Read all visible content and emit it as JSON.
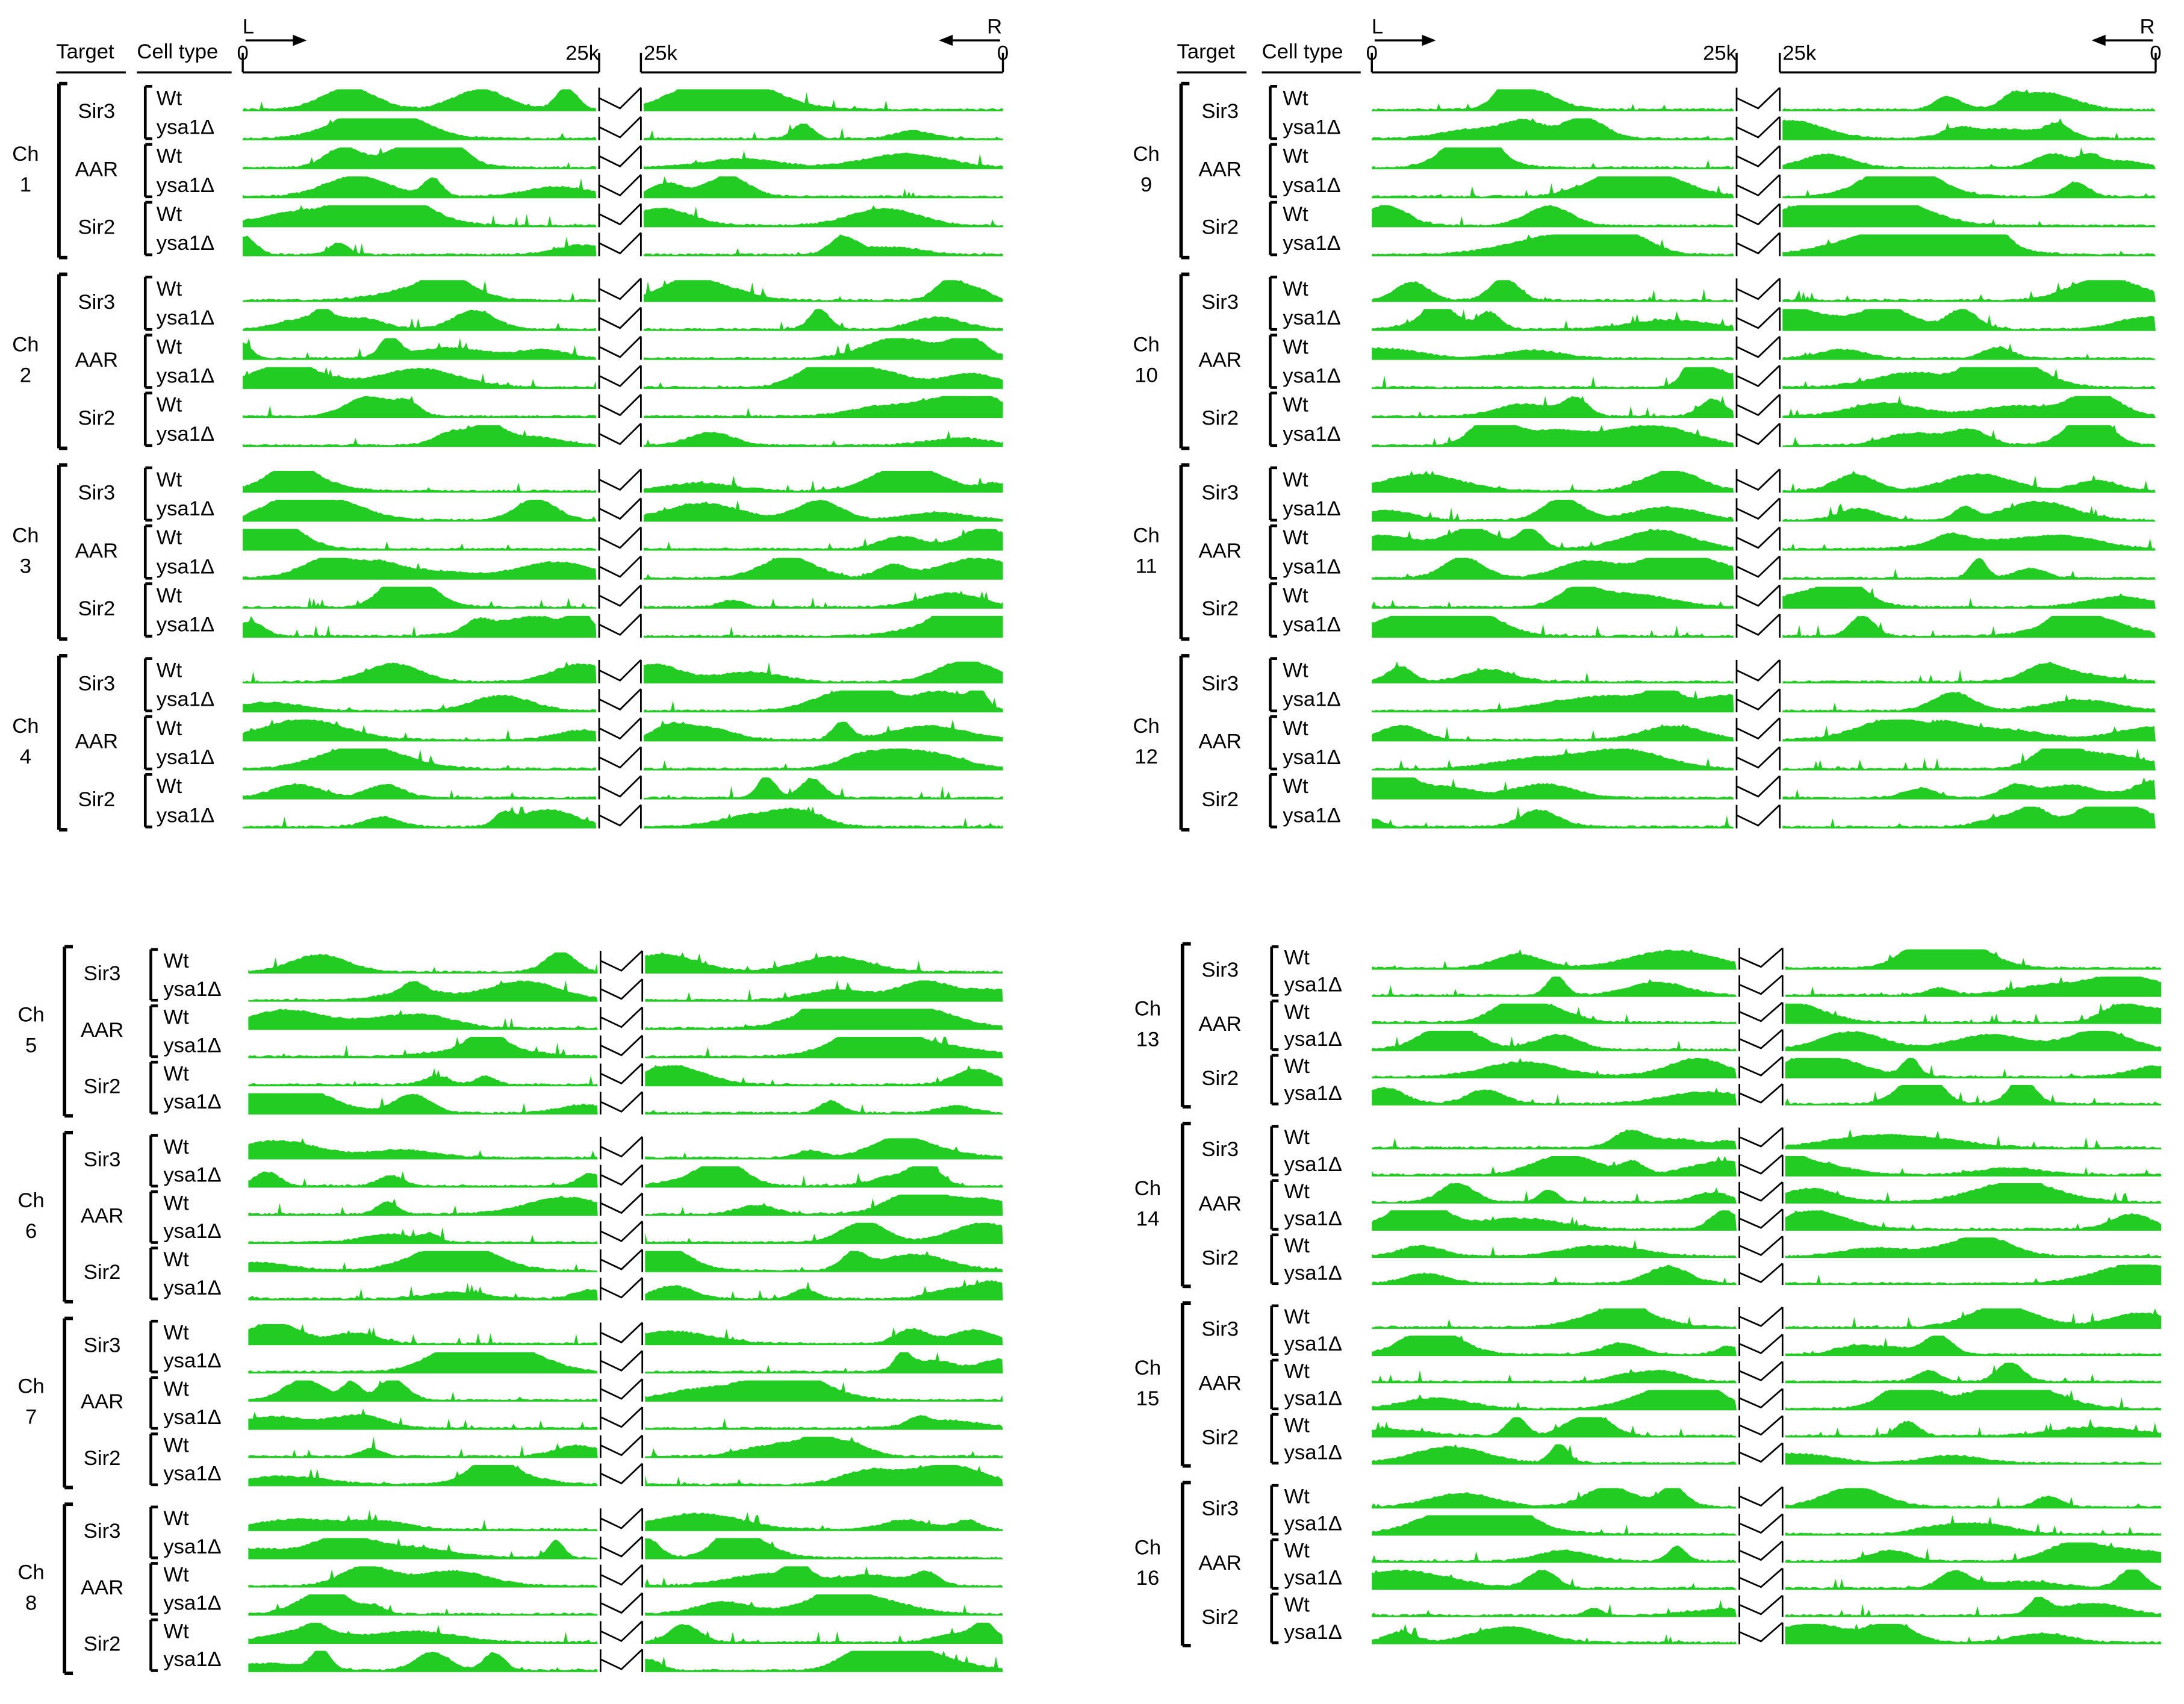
{
  "panels": [
    {
      "header": {
        "target": "Target",
        "cell_type": "Cell type",
        "left": "L",
        "right": "R",
        "ticks": [
          "0",
          "25k",
          "25k",
          "0"
        ]
      },
      "chromosomes": [
        {
          "label": "Ch",
          "number": "1",
          "targets": [
            {
              "name": "Sir3",
              "cells": [
                "Wt",
                "ysa1Δ"
              ]
            },
            {
              "name": "AAR",
              "cells": [
                "Wt",
                "ysa1Δ"
              ]
            },
            {
              "name": "Sir2",
              "cells": [
                "Wt",
                "ysa1Δ"
              ]
            }
          ]
        },
        {
          "label": "Ch",
          "number": "2",
          "targets": [
            {
              "name": "Sir3",
              "cells": [
                "Wt",
                "ysa1Δ"
              ]
            },
            {
              "name": "AAR",
              "cells": [
                "Wt",
                "ysa1Δ"
              ]
            },
            {
              "name": "Sir2",
              "cells": [
                "Wt",
                "ysa1Δ"
              ]
            }
          ]
        },
        {
          "label": "Ch",
          "number": "3",
          "targets": [
            {
              "name": "Sir3",
              "cells": [
                "Wt",
                "ysa1Δ"
              ]
            },
            {
              "name": "AAR",
              "cells": [
                "Wt",
                "ysa1Δ"
              ]
            },
            {
              "name": "Sir2",
              "cells": [
                "Wt",
                "ysa1Δ"
              ]
            }
          ]
        },
        {
          "label": "Ch",
          "number": "4",
          "targets": [
            {
              "name": "Sir3",
              "cells": [
                "Wt",
                "ysa1Δ"
              ]
            },
            {
              "name": "AAR",
              "cells": [
                "Wt",
                "ysa1Δ"
              ]
            },
            {
              "name": "Sir2",
              "cells": [
                "Wt",
                "ysa1Δ"
              ]
            }
          ]
        }
      ]
    },
    {
      "header": {
        "target": "Target",
        "cell_type": "Cell type",
        "left": "L",
        "right": "R",
        "ticks": [
          "0",
          "25k",
          "25k",
          "0"
        ]
      },
      "chromosomes": [
        {
          "label": "Ch",
          "number": "9",
          "targets": [
            {
              "name": "Sir3",
              "cells": [
                "Wt",
                "ysa1Δ"
              ]
            },
            {
              "name": "AAR",
              "cells": [
                "Wt",
                "ysa1Δ"
              ]
            },
            {
              "name": "Sir2",
              "cells": [
                "Wt",
                "ysa1Δ"
              ]
            }
          ]
        },
        {
          "label": "Ch",
          "number": "10",
          "targets": [
            {
              "name": "Sir3",
              "cells": [
                "Wt",
                "ysa1Δ"
              ]
            },
            {
              "name": "AAR",
              "cells": [
                "Wt",
                "ysa1Δ"
              ]
            },
            {
              "name": "Sir2",
              "cells": [
                "Wt",
                "ysa1Δ"
              ]
            }
          ]
        },
        {
          "label": "Ch",
          "number": "11",
          "targets": [
            {
              "name": "Sir3",
              "cells": [
                "Wt",
                "ysa1Δ"
              ]
            },
            {
              "name": "AAR",
              "cells": [
                "Wt",
                "ysa1Δ"
              ]
            },
            {
              "name": "Sir2",
              "cells": [
                "Wt",
                "ysa1Δ"
              ]
            }
          ]
        },
        {
          "label": "Ch",
          "number": "12",
          "targets": [
            {
              "name": "Sir3",
              "cells": [
                "Wt",
                "ysa1Δ"
              ]
            },
            {
              "name": "AAR",
              "cells": [
                "Wt",
                "ysa1Δ"
              ]
            },
            {
              "name": "Sir2",
              "cells": [
                "Wt",
                "ysa1Δ"
              ]
            }
          ]
        }
      ]
    },
    {
      "chromosomes": [
        {
          "label": "Ch",
          "number": "5",
          "targets": [
            {
              "name": "Sir3",
              "cells": [
                "Wt",
                "ysa1Δ"
              ]
            },
            {
              "name": "AAR",
              "cells": [
                "Wt",
                "ysa1Δ"
              ]
            },
            {
              "name": "Sir2",
              "cells": [
                "Wt",
                "ysa1Δ"
              ]
            }
          ]
        },
        {
          "label": "Ch",
          "number": "6",
          "targets": [
            {
              "name": "Sir3",
              "cells": [
                "Wt",
                "ysa1Δ"
              ]
            },
            {
              "name": "AAR",
              "cells": [
                "Wt",
                "ysa1Δ"
              ]
            },
            {
              "name": "Sir2",
              "cells": [
                "Wt",
                "ysa1Δ"
              ]
            }
          ]
        },
        {
          "label": "Ch",
          "number": "7",
          "targets": [
            {
              "name": "Sir3",
              "cells": [
                "Wt",
                "ysa1Δ"
              ]
            },
            {
              "name": "AAR",
              "cells": [
                "Wt",
                "ysa1Δ"
              ]
            },
            {
              "name": "Sir2",
              "cells": [
                "Wt",
                "ysa1Δ"
              ]
            }
          ]
        },
        {
          "label": "Ch",
          "number": "8",
          "targets": [
            {
              "name": "Sir3",
              "cells": [
                "Wt",
                "ysa1Δ"
              ]
            },
            {
              "name": "AAR",
              "cells": [
                "Wt",
                "ysa1Δ"
              ]
            },
            {
              "name": "Sir2",
              "cells": [
                "Wt",
                "ysa1Δ"
              ]
            }
          ]
        }
      ]
    },
    {
      "chromosomes": [
        {
          "label": "Ch",
          "number": "13",
          "targets": [
            {
              "name": "Sir3",
              "cells": [
                "Wt",
                "ysa1Δ"
              ]
            },
            {
              "name": "AAR",
              "cells": [
                "Wt",
                "ysa1Δ"
              ]
            },
            {
              "name": "Sir2",
              "cells": [
                "Wt",
                "ysa1Δ"
              ]
            }
          ]
        },
        {
          "label": "Ch",
          "number": "14",
          "targets": [
            {
              "name": "Sir3",
              "cells": [
                "Wt",
                "ysa1Δ"
              ]
            },
            {
              "name": "AAR",
              "cells": [
                "Wt",
                "ysa1Δ"
              ]
            },
            {
              "name": "Sir2",
              "cells": [
                "Wt",
                "ysa1Δ"
              ]
            }
          ]
        },
        {
          "label": "Ch",
          "number": "15",
          "targets": [
            {
              "name": "Sir3",
              "cells": [
                "Wt",
                "ysa1Δ"
              ]
            },
            {
              "name": "AAR",
              "cells": [
                "Wt",
                "ysa1Δ"
              ]
            },
            {
              "name": "Sir2",
              "cells": [
                "Wt",
                "ysa1Δ"
              ]
            }
          ]
        },
        {
          "label": "Ch",
          "number": "16",
          "targets": [
            {
              "name": "Sir3",
              "cells": [
                "Wt",
                "ysa1Δ"
              ]
            },
            {
              "name": "AAR",
              "cells": [
                "Wt",
                "ysa1Δ"
              ]
            },
            {
              "name": "Sir2",
              "cells": [
                "Wt",
                "ysa1Δ"
              ]
            }
          ]
        }
      ]
    }
  ]
}
